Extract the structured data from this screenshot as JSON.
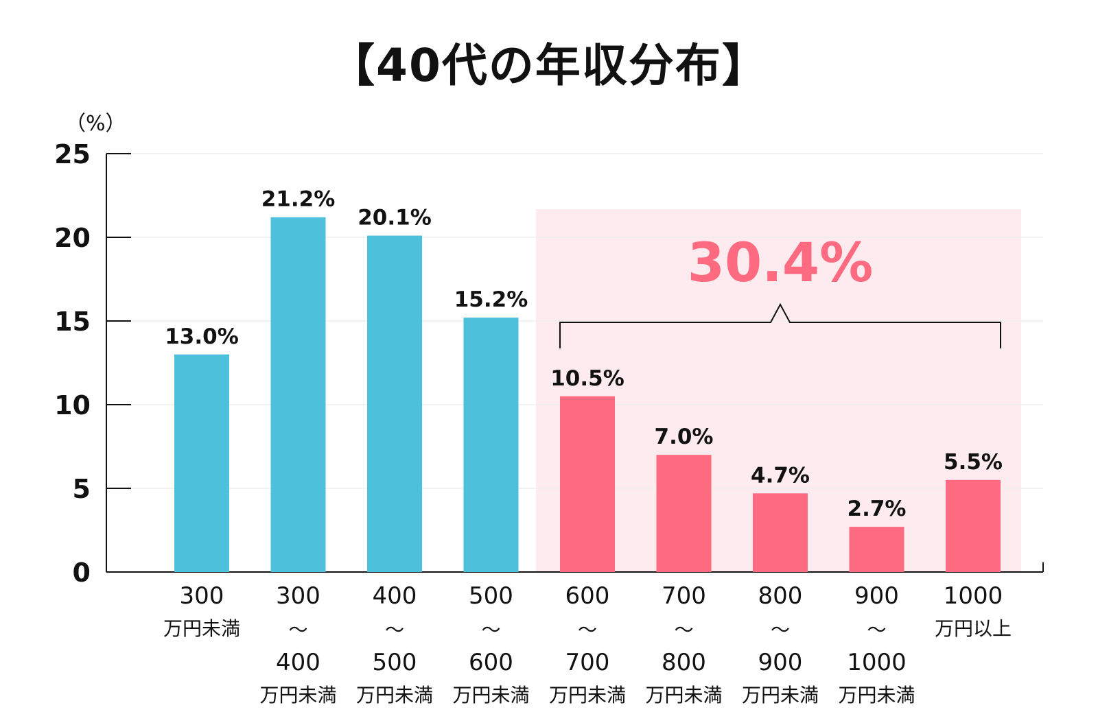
{
  "chart_data": {
    "type": "bar",
    "title": "【40代の年収分布】",
    "ylabel": "（%）",
    "ylim": [
      0,
      25
    ],
    "yticks": [
      0,
      5,
      10,
      15,
      20,
      25
    ],
    "categories": [
      {
        "top": "300",
        "tilde": "",
        "bottom": "",
        "unit": "万円未満"
      },
      {
        "top": "300",
        "tilde": "〜",
        "bottom": "400",
        "unit": "万円未満"
      },
      {
        "top": "400",
        "tilde": "〜",
        "bottom": "500",
        "unit": "万円未満"
      },
      {
        "top": "500",
        "tilde": "〜",
        "bottom": "600",
        "unit": "万円未満"
      },
      {
        "top": "600",
        "tilde": "〜",
        "bottom": "700",
        "unit": "万円未満"
      },
      {
        "top": "700",
        "tilde": "〜",
        "bottom": "800",
        "unit": "万円未満"
      },
      {
        "top": "800",
        "tilde": "〜",
        "bottom": "900",
        "unit": "万円未満"
      },
      {
        "top": "900",
        "tilde": "〜",
        "bottom": "1000",
        "unit": "万円未満"
      },
      {
        "top": "1000",
        "tilde": "",
        "bottom": "",
        "unit": "万円以上"
      }
    ],
    "values": [
      13.0,
      21.2,
      20.1,
      15.2,
      10.5,
      7.0,
      4.7,
      2.7,
      5.5
    ],
    "value_labels": [
      "13.0%",
      "21.2%",
      "20.1%",
      "15.2%",
      "10.5%",
      "7.0%",
      "4.7%",
      "2.7%",
      "5.5%"
    ],
    "highlight": {
      "from_index": 4,
      "to_index": 8,
      "total_label": "30.4%"
    },
    "colors": {
      "base": "#4dc0dc",
      "highlight": "#fe6a7f",
      "highlight_bg": "#fdebef",
      "total_text": "#fe6a7f"
    },
    "grid": true
  }
}
